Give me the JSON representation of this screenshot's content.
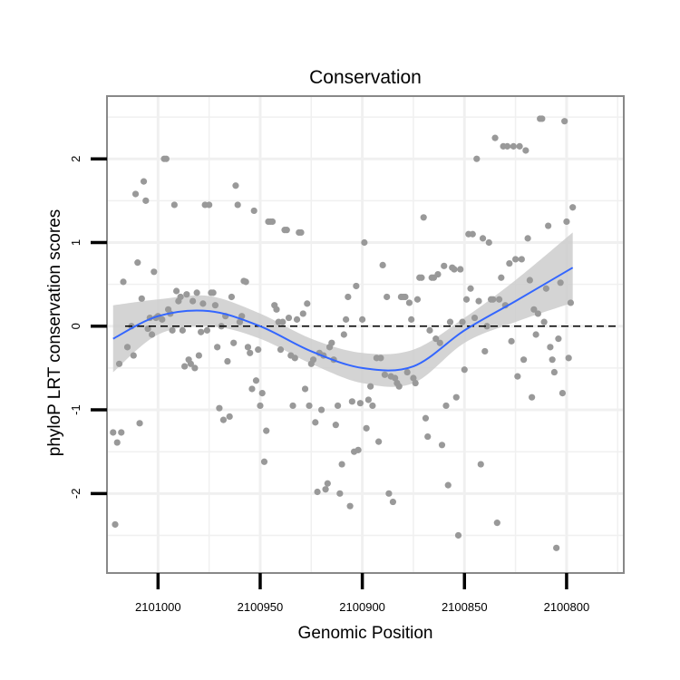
{
  "chart_data": {
    "type": "scatter",
    "title": "Conservation",
    "xlabel": "Genomic Position",
    "ylabel": "phyloP LRT conservation scores",
    "x_reversed": true,
    "xlim": [
      2101025,
      2100772
    ],
    "ylim": [
      -2.95,
      2.75
    ],
    "x_ticks": [
      2101000,
      2100950,
      2100900,
      2100850,
      2100800
    ],
    "x_tick_labels": [
      "2101000",
      "2100950",
      "2100900",
      "2100850",
      "2100800"
    ],
    "y_ticks": [
      -2,
      -1,
      0,
      1,
      2
    ],
    "y_tick_labels": [
      "-2",
      "-1",
      "0",
      "1",
      "2"
    ],
    "reference_line": {
      "y": 0,
      "style": "dashed"
    },
    "grid": true,
    "colors": {
      "points": "#999999",
      "smooth_line": "#3366ff",
      "ribbon": "#cccccc",
      "grid": "#f0f0f0",
      "panel_border": "#888888"
    },
    "points": [
      [
        2101022,
        -1.27
      ],
      [
        2101021,
        -2.37
      ],
      [
        2101020,
        -1.39
      ],
      [
        2101019,
        -0.45
      ],
      [
        2101018,
        -1.27
      ],
      [
        2101017,
        0.53
      ],
      [
        2101015,
        -0.25
      ],
      [
        2101013,
        0.0
      ],
      [
        2101012,
        -0.35
      ],
      [
        2101011,
        1.58
      ],
      [
        2101010,
        0.76
      ],
      [
        2101009,
        -1.16
      ],
      [
        2101008,
        0.33
      ],
      [
        2101007,
        1.73
      ],
      [
        2101006,
        1.5
      ],
      [
        2101005,
        -0.03
      ],
      [
        2101004,
        0.1
      ],
      [
        2101003,
        -0.1
      ],
      [
        2101002,
        0.65
      ],
      [
        2101001,
        0.1
      ],
      [
        2101000,
        0.12
      ],
      [
        2100998,
        0.08
      ],
      [
        2100997,
        2.0
      ],
      [
        2100996,
        2.0
      ],
      [
        2100995,
        0.2
      ],
      [
        2100994,
        0.15
      ],
      [
        2100993,
        -0.05
      ],
      [
        2100992,
        1.45
      ],
      [
        2100991,
        0.42
      ],
      [
        2100990,
        0.3
      ],
      [
        2100989,
        0.35
      ],
      [
        2100988,
        -0.05
      ],
      [
        2100987,
        -0.48
      ],
      [
        2100986,
        0.38
      ],
      [
        2100985,
        -0.4
      ],
      [
        2100984,
        -0.45
      ],
      [
        2100983,
        0.3
      ],
      [
        2100982,
        -0.5
      ],
      [
        2100981,
        0.4
      ],
      [
        2100980,
        -0.35
      ],
      [
        2100979,
        -0.07
      ],
      [
        2100978,
        0.27
      ],
      [
        2100977,
        1.45
      ],
      [
        2100976,
        -0.05
      ],
      [
        2100975,
        1.45
      ],
      [
        2100974,
        0.4
      ],
      [
        2100973,
        0.4
      ],
      [
        2100972,
        0.25
      ],
      [
        2100971,
        -0.25
      ],
      [
        2100970,
        -0.98
      ],
      [
        2100969,
        0.0
      ],
      [
        2100968,
        -1.12
      ],
      [
        2100967,
        0.12
      ],
      [
        2100966,
        -0.42
      ],
      [
        2100965,
        -1.08
      ],
      [
        2100964,
        0.35
      ],
      [
        2100963,
        -0.2
      ],
      [
        2100962,
        1.68
      ],
      [
        2100961,
        1.45
      ],
      [
        2100960,
        0.05
      ],
      [
        2100959,
        0.12
      ],
      [
        2100958,
        0.54
      ],
      [
        2100957,
        0.53
      ],
      [
        2100956,
        -0.25
      ],
      [
        2100955,
        -0.32
      ],
      [
        2100954,
        -0.75
      ],
      [
        2100953,
        1.38
      ],
      [
        2100952,
        -0.65
      ],
      [
        2100951,
        -0.28
      ],
      [
        2100950,
        -0.95
      ],
      [
        2100949,
        -0.8
      ],
      [
        2100948,
        -1.62
      ],
      [
        2100947,
        -1.25
      ],
      [
        2100946,
        1.25
      ],
      [
        2100945,
        1.25
      ],
      [
        2100944,
        1.25
      ],
      [
        2100943,
        0.25
      ],
      [
        2100942,
        0.2
      ],
      [
        2100941,
        0.05
      ],
      [
        2100940,
        -0.28
      ],
      [
        2100939,
        0.05
      ],
      [
        2100938,
        1.15
      ],
      [
        2100937,
        1.15
      ],
      [
        2100936,
        0.1
      ],
      [
        2100935,
        -0.35
      ],
      [
        2100934,
        -0.95
      ],
      [
        2100933,
        -0.38
      ],
      [
        2100932,
        0.08
      ],
      [
        2100931,
        1.12
      ],
      [
        2100930,
        1.12
      ],
      [
        2100929,
        0.15
      ],
      [
        2100928,
        -0.75
      ],
      [
        2100927,
        0.27
      ],
      [
        2100926,
        -0.95
      ],
      [
        2100925,
        -0.45
      ],
      [
        2100924,
        -0.4
      ],
      [
        2100923,
        -1.15
      ],
      [
        2100922,
        -1.98
      ],
      [
        2100921,
        -0.32
      ],
      [
        2100920,
        -1.0
      ],
      [
        2100919,
        -0.35
      ],
      [
        2100918,
        -1.95
      ],
      [
        2100917,
        -1.88
      ],
      [
        2100916,
        -0.25
      ],
      [
        2100915,
        -0.2
      ],
      [
        2100914,
        -0.4
      ],
      [
        2100913,
        -1.18
      ],
      [
        2100912,
        -0.95
      ],
      [
        2100911,
        -2.0
      ],
      [
        2100910,
        -1.65
      ],
      [
        2100909,
        -0.1
      ],
      [
        2100908,
        0.08
      ],
      [
        2100907,
        0.35
      ],
      [
        2100906,
        -2.15
      ],
      [
        2100905,
        -0.9
      ],
      [
        2100904,
        -1.5
      ],
      [
        2100903,
        0.48
      ],
      [
        2100902,
        -1.48
      ],
      [
        2100901,
        -0.92
      ],
      [
        2100900,
        0.08
      ],
      [
        2100899,
        1.0
      ],
      [
        2100898,
        -1.22
      ],
      [
        2100897,
        -0.88
      ],
      [
        2100896,
        -0.72
      ],
      [
        2100895,
        -0.95
      ],
      [
        2100893,
        -0.38
      ],
      [
        2100892,
        -1.38
      ],
      [
        2100891,
        -0.38
      ],
      [
        2100890,
        0.73
      ],
      [
        2100889,
        -0.58
      ],
      [
        2100888,
        0.35
      ],
      [
        2100887,
        -2.0
      ],
      [
        2100886,
        -0.6
      ],
      [
        2100885,
        -2.1
      ],
      [
        2100884,
        -0.62
      ],
      [
        2100883,
        -0.68
      ],
      [
        2100882,
        -0.72
      ],
      [
        2100881,
        0.35
      ],
      [
        2100880,
        0.35
      ],
      [
        2100879,
        0.35
      ],
      [
        2100878,
        -0.55
      ],
      [
        2100877,
        0.28
      ],
      [
        2100876,
        0.08
      ],
      [
        2100875,
        -0.62
      ],
      [
        2100874,
        -0.68
      ],
      [
        2100873,
        0.32
      ],
      [
        2100872,
        0.58
      ],
      [
        2100871,
        0.58
      ],
      [
        2100870,
        1.3
      ],
      [
        2100869,
        -1.1
      ],
      [
        2100868,
        -1.32
      ],
      [
        2100867,
        -0.05
      ],
      [
        2100866,
        0.58
      ],
      [
        2100865,
        0.58
      ],
      [
        2100864,
        -0.15
      ],
      [
        2100863,
        0.62
      ],
      [
        2100862,
        -0.2
      ],
      [
        2100861,
        -1.42
      ],
      [
        2100860,
        0.72
      ],
      [
        2100859,
        -0.95
      ],
      [
        2100858,
        -1.9
      ],
      [
        2100857,
        0.05
      ],
      [
        2100856,
        0.7
      ],
      [
        2100855,
        0.68
      ],
      [
        2100854,
        -0.85
      ],
      [
        2100853,
        -2.5
      ],
      [
        2100852,
        0.68
      ],
      [
        2100851,
        0.05
      ],
      [
        2100850,
        -0.52
      ],
      [
        2100849,
        0.32
      ],
      [
        2100848,
        1.1
      ],
      [
        2100847,
        0.45
      ],
      [
        2100846,
        1.1
      ],
      [
        2100845,
        0.1
      ],
      [
        2100844,
        2.0
      ],
      [
        2100843,
        0.3
      ],
      [
        2100842,
        -1.65
      ],
      [
        2100841,
        1.05
      ],
      [
        2100840,
        -0.3
      ],
      [
        2100839,
        0.0
      ],
      [
        2100838,
        1.0
      ],
      [
        2100837,
        0.32
      ],
      [
        2100836,
        0.32
      ],
      [
        2100835,
        2.25
      ],
      [
        2100834,
        -2.35
      ],
      [
        2100833,
        0.32
      ],
      [
        2100832,
        0.58
      ],
      [
        2100831,
        2.15
      ],
      [
        2100830,
        0.25
      ],
      [
        2100829,
        2.15
      ],
      [
        2100828,
        0.75
      ],
      [
        2100827,
        -0.18
      ],
      [
        2100826,
        2.15
      ],
      [
        2100825,
        0.8
      ],
      [
        2100824,
        -0.6
      ],
      [
        2100823,
        2.15
      ],
      [
        2100822,
        0.8
      ],
      [
        2100821,
        -0.4
      ],
      [
        2100820,
        2.1
      ],
      [
        2100819,
        1.05
      ],
      [
        2100818,
        0.55
      ],
      [
        2100817,
        -0.85
      ],
      [
        2100816,
        0.2
      ],
      [
        2100815,
        -0.1
      ],
      [
        2100814,
        0.15
      ],
      [
        2100813,
        2.48
      ],
      [
        2100812,
        2.48
      ],
      [
        2100811,
        0.05
      ],
      [
        2100810,
        0.45
      ],
      [
        2100809,
        1.2
      ],
      [
        2100808,
        -0.25
      ],
      [
        2100807,
        -0.4
      ],
      [
        2100806,
        -0.55
      ],
      [
        2100805,
        -2.65
      ],
      [
        2100804,
        -0.15
      ],
      [
        2100803,
        0.52
      ],
      [
        2100802,
        -0.8
      ],
      [
        2100801,
        2.45
      ],
      [
        2100800,
        1.25
      ],
      [
        2100799,
        -0.38
      ],
      [
        2100798,
        0.28
      ],
      [
        2100797,
        1.42
      ]
    ],
    "smooth_fit": {
      "method": "loess",
      "x": [
        2101022,
        2101000,
        2100975,
        2100950,
        2100925,
        2100900,
        2100875,
        2100850,
        2100825,
        2100797
      ],
      "y": [
        -0.15,
        0.12,
        0.18,
        0.0,
        -0.3,
        -0.5,
        -0.48,
        -0.05,
        0.3,
        0.7
      ],
      "ci_lower": [
        -0.55,
        -0.1,
        0.0,
        -0.15,
        -0.45,
        -0.68,
        -0.68,
        -0.2,
        0.05,
        0.28
      ],
      "ci_upper": [
        0.25,
        0.32,
        0.36,
        0.15,
        -0.15,
        -0.32,
        -0.28,
        0.1,
        0.55,
        1.12
      ]
    }
  }
}
